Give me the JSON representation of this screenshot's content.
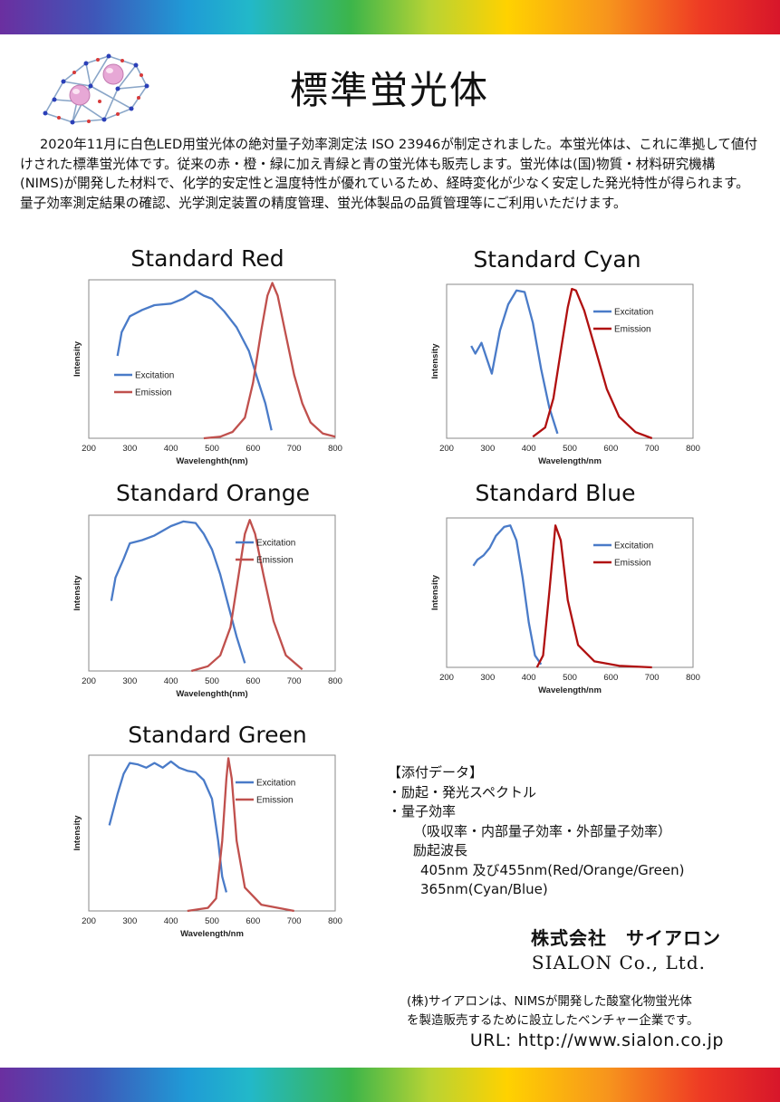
{
  "page": {
    "title": "標準蛍光体",
    "intro": "2020年11月に白色LED用蛍光体の絶対量子効率測定法 ISO 23946が制定されました。本蛍光体は、これに準拠して値付けされた標準蛍光体です。従来の赤・橙・緑に加え青緑と青の蛍光体も販売します。蛍光体は(国)物質・材料研究機構(NIMS)が開発した材料で、化学的安定性と温度特性が優れているため、経時変化が少なく安定した発光特性が得られます。量子効率測定結果の確認、光学測定装置の精度管理、蛍光体製品の品質管理等にご利用いただけます。"
  },
  "colors": {
    "excitation": "#4a7bc8",
    "emission": "#c0504d",
    "emission_dark": "#b01010"
  },
  "annex": {
    "heading": "【添付データ】",
    "items": [
      "・励起・発光スペクトル",
      "・量子効率"
    ],
    "qe_detail": "（吸収率・内部量子効率・外部量子効率）",
    "wavelength_label": "励起波長",
    "wavelength_1": "405nm 及び455nm(Red/Orange/Green)",
    "wavelength_2": "365nm(Cyan/Blue)"
  },
  "company": {
    "name_ja": "株式会社　サイアロン",
    "name_en": "SIALON Co., Ltd.",
    "note_line1": "(株)サイアロンは、NIMSが開発した酸窒化物蛍光体",
    "note_line2": "を製造販売するために設立したベンチャー企業です。",
    "url": "URL: http://www.sialon.co.jp"
  },
  "chart_data": [
    {
      "type": "line",
      "title": "Standard Red",
      "xlabel": "Wavelenghth(nm)",
      "ylabel": "Intensity",
      "xlim": [
        200,
        800
      ],
      "ylim": [
        0,
        1
      ],
      "xticks": [
        "200",
        "300",
        "400",
        "500",
        "600",
        "700",
        "800"
      ],
      "legend": "left",
      "series": [
        {
          "name": "Excitation",
          "color": "#4a7bc8",
          "points": [
            [
              270,
              0.52
            ],
            [
              280,
              0.67
            ],
            [
              300,
              0.77
            ],
            [
              330,
              0.81
            ],
            [
              360,
              0.84
            ],
            [
              400,
              0.85
            ],
            [
              430,
              0.88
            ],
            [
              460,
              0.93
            ],
            [
              480,
              0.9
            ],
            [
              500,
              0.88
            ],
            [
              530,
              0.8
            ],
            [
              560,
              0.7
            ],
            [
              590,
              0.55
            ],
            [
              610,
              0.38
            ],
            [
              630,
              0.22
            ],
            [
              645,
              0.05
            ]
          ]
        },
        {
          "name": "Emission",
          "color": "#c0504d",
          "points": [
            [
              480,
              0.0
            ],
            [
              520,
              0.01
            ],
            [
              550,
              0.04
            ],
            [
              580,
              0.13
            ],
            [
              600,
              0.35
            ],
            [
              620,
              0.68
            ],
            [
              635,
              0.9
            ],
            [
              647,
              0.98
            ],
            [
              660,
              0.9
            ],
            [
              680,
              0.65
            ],
            [
              700,
              0.4
            ],
            [
              720,
              0.22
            ],
            [
              740,
              0.1
            ],
            [
              770,
              0.03
            ],
            [
              800,
              0.01
            ]
          ]
        }
      ]
    },
    {
      "type": "line",
      "title": "Standard Cyan",
      "xlabel": "Wavelength/nm",
      "ylabel": "Intensity",
      "xlim": [
        200,
        800
      ],
      "ylim": [
        0,
        1
      ],
      "xticks": [
        "200",
        "300",
        "400",
        "500",
        "600",
        "700",
        "800"
      ],
      "legend": "top-right",
      "series": [
        {
          "name": "Excitation",
          "color": "#4a7bc8",
          "points": [
            [
              260,
              0.6
            ],
            [
              270,
              0.55
            ],
            [
              285,
              0.62
            ],
            [
              300,
              0.5
            ],
            [
              310,
              0.42
            ],
            [
              330,
              0.7
            ],
            [
              350,
              0.87
            ],
            [
              370,
              0.96
            ],
            [
              390,
              0.95
            ],
            [
              410,
              0.75
            ],
            [
              430,
              0.45
            ],
            [
              450,
              0.2
            ],
            [
              470,
              0.03
            ]
          ]
        },
        {
          "name": "Emission",
          "color": "#b01010",
          "points": [
            [
              410,
              0.01
            ],
            [
              440,
              0.07
            ],
            [
              460,
              0.26
            ],
            [
              480,
              0.6
            ],
            [
              495,
              0.85
            ],
            [
              505,
              0.97
            ],
            [
              515,
              0.96
            ],
            [
              535,
              0.83
            ],
            [
              560,
              0.6
            ],
            [
              590,
              0.32
            ],
            [
              620,
              0.14
            ],
            [
              660,
              0.04
            ],
            [
              700,
              0.0
            ]
          ]
        }
      ]
    },
    {
      "type": "line",
      "title": "Standard Orange",
      "xlabel": "Wavelenghth(nm)",
      "ylabel": "Intensity",
      "xlim": [
        200,
        800
      ],
      "ylim": [
        0,
        1
      ],
      "xticks": [
        "200",
        "300",
        "400",
        "500",
        "600",
        "700",
        "800"
      ],
      "legend": "top-right",
      "series": [
        {
          "name": "Excitation",
          "color": "#4a7bc8",
          "points": [
            [
              255,
              0.45
            ],
            [
              265,
              0.6
            ],
            [
              285,
              0.72
            ],
            [
              300,
              0.82
            ],
            [
              330,
              0.84
            ],
            [
              360,
              0.87
            ],
            [
              400,
              0.93
            ],
            [
              430,
              0.96
            ],
            [
              460,
              0.95
            ],
            [
              480,
              0.88
            ],
            [
              500,
              0.78
            ],
            [
              520,
              0.62
            ],
            [
              540,
              0.42
            ],
            [
              560,
              0.22
            ],
            [
              580,
              0.05
            ]
          ]
        },
        {
          "name": "Emission",
          "color": "#c0504d",
          "points": [
            [
              450,
              0.0
            ],
            [
              490,
              0.03
            ],
            [
              520,
              0.1
            ],
            [
              545,
              0.28
            ],
            [
              565,
              0.62
            ],
            [
              580,
              0.88
            ],
            [
              592,
              0.97
            ],
            [
              605,
              0.88
            ],
            [
              625,
              0.62
            ],
            [
              650,
              0.32
            ],
            [
              680,
              0.1
            ],
            [
              720,
              0.01
            ]
          ]
        }
      ]
    },
    {
      "type": "line",
      "title": "Standard Blue",
      "xlabel": "Wavelength/nm",
      "ylabel": "Intensity",
      "xlim": [
        200,
        800
      ],
      "ylim": [
        0,
        1
      ],
      "xticks": [
        "200",
        "300",
        "400",
        "500",
        "600",
        "700",
        "800"
      ],
      "legend": "top-right",
      "series": [
        {
          "name": "Excitation",
          "color": "#4a7bc8",
          "points": [
            [
              265,
              0.68
            ],
            [
              275,
              0.72
            ],
            [
              290,
              0.75
            ],
            [
              305,
              0.8
            ],
            [
              320,
              0.88
            ],
            [
              340,
              0.94
            ],
            [
              355,
              0.95
            ],
            [
              370,
              0.85
            ],
            [
              385,
              0.6
            ],
            [
              400,
              0.3
            ],
            [
              415,
              0.08
            ],
            [
              430,
              0.02
            ]
          ]
        },
        {
          "name": "Emission",
          "color": "#b01010",
          "points": [
            [
              420,
              0.0
            ],
            [
              435,
              0.08
            ],
            [
              450,
              0.5
            ],
            [
              465,
              0.95
            ],
            [
              478,
              0.85
            ],
            [
              495,
              0.45
            ],
            [
              520,
              0.15
            ],
            [
              560,
              0.04
            ],
            [
              620,
              0.01
            ],
            [
              700,
              0.0
            ]
          ]
        }
      ]
    },
    {
      "type": "line",
      "title": "Standard Green",
      "xlabel": "Wavelength/nm",
      "ylabel": "Intensity",
      "xlim": [
        200,
        800
      ],
      "ylim": [
        0,
        1
      ],
      "xticks": [
        "200",
        "300",
        "400",
        "500",
        "600",
        "700",
        "800"
      ],
      "legend": "top-right",
      "series": [
        {
          "name": "Excitation",
          "color": "#4a7bc8",
          "points": [
            [
              250,
              0.55
            ],
            [
              270,
              0.75
            ],
            [
              285,
              0.88
            ],
            [
              300,
              0.95
            ],
            [
              320,
              0.94
            ],
            [
              340,
              0.92
            ],
            [
              360,
              0.95
            ],
            [
              380,
              0.92
            ],
            [
              400,
              0.96
            ],
            [
              420,
              0.92
            ],
            [
              440,
              0.9
            ],
            [
              460,
              0.89
            ],
            [
              480,
              0.84
            ],
            [
              500,
              0.72
            ],
            [
              515,
              0.45
            ],
            [
              525,
              0.22
            ],
            [
              535,
              0.12
            ]
          ]
        },
        {
          "name": "Emission",
          "color": "#c0504d",
          "points": [
            [
              440,
              0.0
            ],
            [
              490,
              0.02
            ],
            [
              510,
              0.08
            ],
            [
              525,
              0.45
            ],
            [
              535,
              0.85
            ],
            [
              540,
              0.98
            ],
            [
              548,
              0.85
            ],
            [
              560,
              0.45
            ],
            [
              580,
              0.15
            ],
            [
              620,
              0.04
            ],
            [
              700,
              0.0
            ]
          ]
        }
      ]
    }
  ]
}
